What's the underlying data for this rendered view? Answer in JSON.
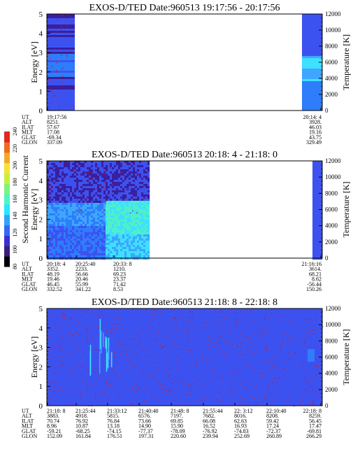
{
  "figure": {
    "colorbar": {
      "label": "Second Harmonic Current",
      "ticks": [
        "80",
        "100",
        "120",
        "140",
        "160",
        "180",
        "200",
        "220",
        "240"
      ]
    }
  },
  "chart_data": [
    {
      "type": "heatmap",
      "title": "EXOS-D/TED   Date:960513  19:17:56 - 20:17:56",
      "ylabel": "Energy [eV]",
      "y2label": "Temperature [K]",
      "ylim": [
        0,
        5
      ],
      "y2lim": [
        0,
        12000
      ],
      "yticks": [
        "0",
        "1",
        "2",
        "3",
        "4",
        "5"
      ],
      "y2ticks": [
        "0",
        "2000",
        "4000",
        "6000",
        "8000",
        "10000",
        "12000"
      ],
      "data_extent": "data only at start (19:17:56) and end (20:14:4) of interval; gap in between",
      "orbit_labels": [
        "UT",
        "ALT",
        "ILAT",
        "MLT",
        "GLAT",
        "GLON"
      ],
      "orbit": [
        {
          "UT": "19:17:56",
          "ALT": "8251.",
          "ILAT": "57.67",
          "MLT": "17.08",
          "GLAT": "-69.34",
          "GLON": "337.09"
        },
        {
          "UT": "20:14: 4",
          "ALT": "3928.",
          "ILAT": "46.03",
          "MLT": "19.16",
          "GLAT": "43.75",
          "GLON": "329.49"
        }
      ]
    },
    {
      "type": "heatmap",
      "title": "EXOS-D/TED   Date:960513  20:18: 4 - 21:18: 0",
      "ylabel": "Energy [eV]",
      "y2label": "Temperature [K]",
      "ylim": [
        0,
        5
      ],
      "y2lim": [
        0,
        12000
      ],
      "yticks": [
        "0",
        "1",
        "2",
        "3",
        "4",
        "5"
      ],
      "y2ticks": [
        "0",
        "2000",
        "4000",
        "6000",
        "8000",
        "10000",
        "12000"
      ],
      "data_extent": "data from 20:18:4 to about 20:38 (enhanced 2 eV band), then gap to 21:16:16",
      "orbit_labels": [
        "UT",
        "ALT",
        "ILAT",
        "MLT",
        "GLAT",
        "GLON"
      ],
      "orbit": [
        {
          "UT": "20:18: 4",
          "ALT": "3352.",
          "ILAT": "48.19",
          "MLT": "19.46",
          "GLAT": "46.45",
          "GLON": "332.52"
        },
        {
          "UT": "20:25:40",
          "ALT": "2233.",
          "ILAT": "56.66",
          "MLT": "20.46",
          "GLAT": "55.99",
          "GLON": "341.22"
        },
        {
          "UT": "20:33: 8",
          "ALT": "1210.",
          "ILAT": "69.23",
          "MLT": "23.37",
          "GLAT": "71.42",
          "GLON": "8.53"
        },
        {
          "UT": "21:16:16",
          "ALT": "3614.",
          "ILAT": "68.21",
          "MLT": "8.62",
          "GLAT": "-56.44",
          "GLON": "150.26"
        }
      ]
    },
    {
      "type": "heatmap",
      "title": "EXOS-D/TED   Date:960513  21:18: 8 - 22:18: 8",
      "ylabel": "Energy [eV]",
      "y2label": "Temperature [K]",
      "ylim": [
        0,
        5
      ],
      "y2lim": [
        0,
        12000
      ],
      "yticks": [
        "0",
        "1",
        "2",
        "3",
        "4",
        "5"
      ],
      "y2ticks": [
        "0",
        "2000",
        "4000",
        "6000",
        "8000",
        "10000",
        "12000"
      ],
      "data_extent": "continuous data for whole interval, low level with sparse speckle",
      "orbit_labels": [
        "UT",
        "ALT",
        "ILAT",
        "MLT",
        "GLAT",
        "GLON"
      ],
      "orbit": [
        {
          "UT": "21:18: 8",
          "ALT": "3883.",
          "ILAT": "70.74",
          "MLT": "8.96",
          "GLAT": "-59.21",
          "GLON": "152.09"
        },
        {
          "UT": "21:25:44",
          "ALT": "4918.",
          "ILAT": "76.92",
          "MLT": "10.87",
          "GLAT": "-68.25",
          "GLON": "161.84"
        },
        {
          "UT": "21:33:12",
          "ALT": "5815.",
          "ILAT": "76.84",
          "MLT": "13.18",
          "GLAT": "-74.15",
          "GLON": "176.51"
        },
        {
          "UT": "21:40:40",
          "ALT": "6576.",
          "ILAT": "73.66",
          "MLT": "14.90",
          "GLAT": "-77.37",
          "GLON": "197.31"
        },
        {
          "UT": "21:48: 8",
          "ALT": "7197.",
          "ILAT": "69.85",
          "MLT": "15.90",
          "GLAT": "-78.09",
          "GLON": "220.60"
        },
        {
          "UT": "21:55:44",
          "ALT": "7682.",
          "ILAT": "66.08",
          "MLT": "16.52",
          "GLAT": "-76.92",
          "GLON": "239.94"
        },
        {
          "UT": "22: 3:12",
          "ALT": "8016.",
          "ILAT": "62.63",
          "MLT": "16.93",
          "GLAT": "-74.83",
          "GLON": "252.69"
        },
        {
          "UT": "22:10:40",
          "ALT": "8208.",
          "ILAT": "59.42",
          "MLT": "17.24",
          "GLAT": "-72.37",
          "GLON": "260.89"
        },
        {
          "UT": "22:18: 8",
          "ALT": "8259.",
          "ILAT": "56.45",
          "MLT": "17.47",
          "GLAT": "-69.81",
          "GLON": "266.29"
        }
      ]
    }
  ]
}
